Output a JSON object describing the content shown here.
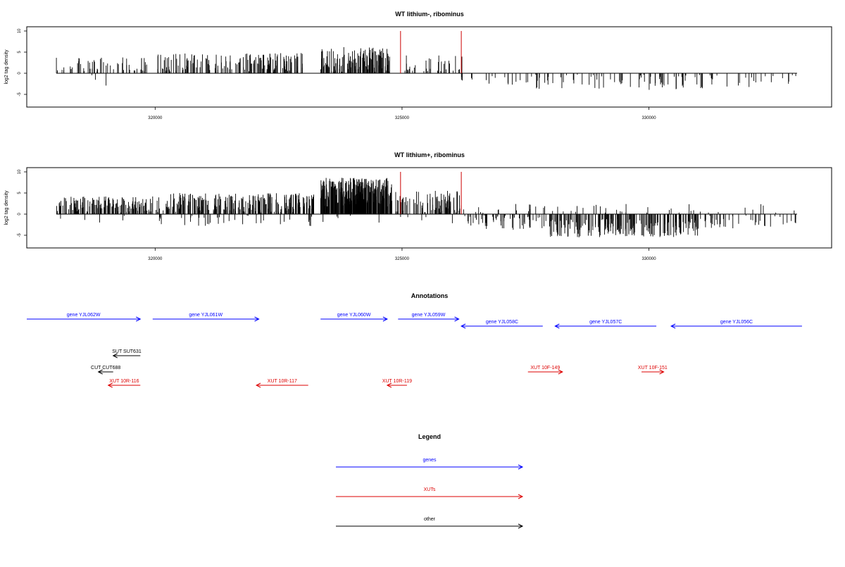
{
  "chart_data": [
    {
      "type": "bar",
      "title": "WT lithium-, ribominus",
      "ylabel": "log2 tag density",
      "xlabel": "",
      "xlim": [
        317400,
        333700
      ],
      "ylim": [
        -8,
        11
      ],
      "xticks": [
        {
          "value": 320000,
          "label": "320000"
        },
        {
          "value": 325000,
          "label": "325000"
        },
        {
          "value": 330000,
          "label": "330000"
        }
      ],
      "yticks": [
        {
          "value": -5,
          "label": "-5"
        },
        {
          "value": 0,
          "label": "0"
        },
        {
          "value": 5,
          "label": "5"
        },
        {
          "value": 10,
          "label": "10"
        }
      ],
      "markers": [
        {
          "x": 324970,
          "y": 10,
          "color": "#cc0000"
        },
        {
          "x": 326200,
          "y": 10,
          "color": "#cc0000"
        }
      ],
      "regions": [
        {
          "from": 318000,
          "to": 319950,
          "sign": 1,
          "mean": 1.8,
          "spread": 2.2,
          "count": 55
        },
        {
          "from": 320050,
          "to": 323000,
          "sign": 1,
          "mean": 2.6,
          "spread": 2.2,
          "count": 170
        },
        {
          "from": 323350,
          "to": 324750,
          "sign": 1,
          "mean": 3.2,
          "spread": 3.0,
          "count": 140
        },
        {
          "from": 325050,
          "to": 326250,
          "sign": 1,
          "mean": 2.0,
          "spread": 2.5,
          "count": 35
        },
        {
          "from": 318700,
          "to": 319300,
          "sign": -1,
          "mean": 1.5,
          "spread": 1.5,
          "count": 3
        },
        {
          "from": 326200,
          "to": 327600,
          "sign": -1,
          "mean": 1.5,
          "spread": 1.8,
          "count": 18
        },
        {
          "from": 327600,
          "to": 331200,
          "sign": -1,
          "mean": 2.0,
          "spread": 2.0,
          "count": 75
        },
        {
          "from": 331200,
          "to": 333000,
          "sign": -1,
          "mean": 1.5,
          "spread": 1.8,
          "count": 22
        }
      ]
    },
    {
      "type": "bar",
      "title": "WT lithium+, ribominus",
      "ylabel": "log2 tag density",
      "xlabel": "",
      "xlim": [
        317400,
        333700
      ],
      "ylim": [
        -8,
        11
      ],
      "xticks": [
        {
          "value": 320000,
          "label": "320000"
        },
        {
          "value": 325000,
          "label": "325000"
        },
        {
          "value": 330000,
          "label": "330000"
        }
      ],
      "yticks": [
        {
          "value": -5,
          "label": "-5"
        },
        {
          "value": 0,
          "label": "0"
        },
        {
          "value": 5,
          "label": "5"
        },
        {
          "value": 10,
          "label": "10"
        }
      ],
      "markers": [
        {
          "x": 324970,
          "y": 10,
          "color": "#cc0000"
        },
        {
          "x": 326200,
          "y": 10,
          "color": "#cc0000"
        }
      ],
      "regions": [
        {
          "from": 318000,
          "to": 319950,
          "sign": 1,
          "mean": 2.2,
          "spread": 2.0,
          "count": 150
        },
        {
          "from": 320000,
          "to": 323250,
          "sign": 1,
          "mean": 2.6,
          "spread": 2.4,
          "count": 260
        },
        {
          "from": 323350,
          "to": 324800,
          "sign": 1,
          "mean": 5.2,
          "spread": 3.4,
          "count": 320
        },
        {
          "from": 324850,
          "to": 326200,
          "sign": 1,
          "mean": 3.0,
          "spread": 2.6,
          "count": 90
        },
        {
          "from": 326200,
          "to": 333000,
          "sign": 1,
          "mean": 1.0,
          "spread": 1.5,
          "count": 50
        },
        {
          "from": 318000,
          "to": 319950,
          "sign": -1,
          "mean": 0.8,
          "spread": 1.2,
          "count": 5
        },
        {
          "from": 320000,
          "to": 323250,
          "sign": -1,
          "mean": 1.4,
          "spread": 1.5,
          "count": 40
        },
        {
          "from": 323350,
          "to": 326200,
          "sign": -1,
          "mean": 1.0,
          "spread": 1.2,
          "count": 10
        },
        {
          "from": 326200,
          "to": 328000,
          "sign": -1,
          "mean": 2.0,
          "spread": 1.8,
          "count": 60
        },
        {
          "from": 328000,
          "to": 331000,
          "sign": -1,
          "mean": 3.3,
          "spread": 2.2,
          "count": 200
        },
        {
          "from": 331000,
          "to": 333000,
          "sign": -1,
          "mean": 1.8,
          "spread": 1.6,
          "count": 40
        }
      ]
    }
  ],
  "annotations": {
    "title": "Annotations",
    "xlim": [
      317400,
      333700
    ],
    "tracks": {
      "row1": 1,
      "row2": 2,
      "row3": 3,
      "row4": 4,
      "row5": 5
    },
    "features": [
      {
        "label": "gene YJL062W",
        "start": 317400,
        "end": 319700,
        "strand": "+",
        "row": 1,
        "color": "#0000ff"
      },
      {
        "label": "gene YJL061W",
        "start": 319950,
        "end": 322100,
        "strand": "+",
        "row": 1,
        "color": "#0000ff"
      },
      {
        "label": "gene YJL060W",
        "start": 323350,
        "end": 324700,
        "strand": "+",
        "row": 1,
        "color": "#0000ff"
      },
      {
        "label": "gene YJL059W",
        "start": 324920,
        "end": 326150,
        "strand": "+",
        "row": 1,
        "color": "#0000ff"
      },
      {
        "label": "gene YJL058C",
        "start": 326200,
        "end": 327850,
        "strand": "-",
        "row": 2,
        "color": "#0000ff"
      },
      {
        "label": "gene YJL057C",
        "start": 328100,
        "end": 330150,
        "strand": "-",
        "row": 2,
        "color": "#0000ff"
      },
      {
        "label": "gene YJL056C",
        "start": 330450,
        "end": 333100,
        "strand": "-",
        "row": 2,
        "color": "#0000ff"
      },
      {
        "label": "SUT SUT631",
        "start": 319150,
        "end": 319700,
        "strand": "-",
        "row": 3,
        "color": "#000000"
      },
      {
        "label": "CUT CUT688",
        "start": 318850,
        "end": 319150,
        "strand": "-",
        "row": 4,
        "color": "#000000"
      },
      {
        "label": "XUT 10R-116",
        "start": 319050,
        "end": 319700,
        "strand": "-",
        "row": 5,
        "color": "#dd0000"
      },
      {
        "label": "XUT 10R-117",
        "start": 322050,
        "end": 323100,
        "strand": "-",
        "row": 5,
        "color": "#dd0000"
      },
      {
        "label": "XUT 10R-119",
        "start": 324700,
        "end": 325100,
        "strand": "-",
        "row": 5,
        "color": "#dd0000"
      },
      {
        "label": "XUT 10F-149",
        "start": 327550,
        "end": 328250,
        "strand": "+",
        "row": 4,
        "color": "#dd0000"
      },
      {
        "label": "XUT 10F-151",
        "start": 329850,
        "end": 330300,
        "strand": "+",
        "row": 4,
        "color": "#dd0000"
      }
    ]
  },
  "legend": {
    "title": "Legend",
    "entries": [
      {
        "label": "genes",
        "color": "#0000ff"
      },
      {
        "label": "XUTs",
        "color": "#dd0000"
      },
      {
        "label": "other",
        "color": "#000000"
      }
    ]
  }
}
